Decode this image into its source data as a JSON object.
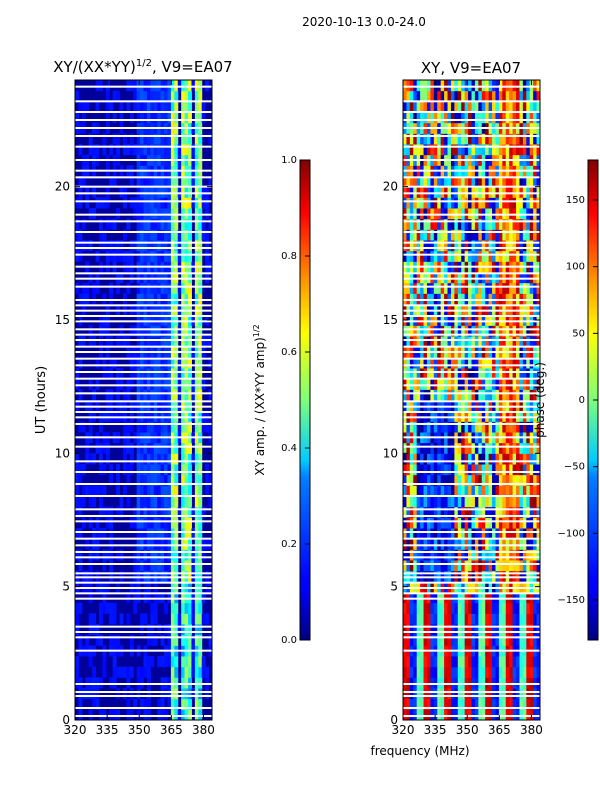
{
  "figure": {
    "suptitle": "2020-10-13 0.0-24.0",
    "xlabel": "frequency (MHz)"
  },
  "chart_data": [
    {
      "type": "heatmap",
      "title": "XY/(XX*YY)",
      "title_superscript": "1/2",
      "title_suffix": ", V9=EA07",
      "xlabel": "",
      "ylabel": "UT (hours)",
      "xlim": [
        320,
        384
      ],
      "ylim": [
        0,
        24
      ],
      "xticks": [
        "320",
        "335",
        "350",
        "365",
        "380"
      ],
      "xtick_values": [
        320,
        335,
        350,
        365,
        380
      ],
      "yticks": [
        "0",
        "5",
        "10",
        "15",
        "20"
      ],
      "ytick_values": [
        0,
        5,
        10,
        15,
        20
      ],
      "colormap": "jet",
      "colorbar": {
        "label": "XY amp. / (XX*YY amp)",
        "label_superscript": "1/2",
        "range": [
          0.0,
          1.0
        ],
        "ticks": [
          "0.0",
          "0.2",
          "0.4",
          "0.6",
          "0.8",
          "1.0"
        ],
        "tick_values": [
          0.0,
          0.2,
          0.4,
          0.6,
          0.8,
          1.0
        ]
      },
      "bright_channels_mhz": [
        [
          364.5,
          367.5
        ],
        [
          369,
          371
        ],
        [
          372,
          374.5
        ],
        [
          376,
          378.5
        ],
        [
          378.5,
          380
        ]
      ]
    },
    {
      "type": "heatmap",
      "title": "XY, V9=EA07",
      "xlabel": "",
      "ylabel": "",
      "xlim": [
        320,
        384
      ],
      "ylim": [
        0,
        24
      ],
      "xticks": [
        "320",
        "335",
        "350",
        "365",
        "380"
      ],
      "xtick_values": [
        320,
        335,
        350,
        365,
        380
      ],
      "yticks": [
        "0",
        "5",
        "10",
        "15",
        "20"
      ],
      "ytick_values": [
        0,
        5,
        10,
        15,
        20
      ],
      "colormap": "jet",
      "colorbar": {
        "label": "phase (deg.)",
        "range": [
          -180,
          180
        ],
        "ticks": [
          "−150",
          "−100",
          "−50",
          "0",
          "50",
          "100",
          "150"
        ],
        "tick_values": [
          -150,
          -100,
          -50,
          0,
          50,
          100,
          150
        ]
      }
    }
  ],
  "flagged_hours": [
    0.15,
    0.45,
    0.9,
    1.05,
    1.35,
    2.6,
    3.1,
    3.3,
    3.5,
    4.55,
    4.75,
    4.95,
    5.15,
    5.35,
    5.5,
    5.85,
    6.1,
    6.3,
    6.55,
    6.8,
    7.05,
    7.45,
    7.65,
    7.9,
    8.4,
    8.85,
    9.3,
    9.7,
    10.25,
    10.6,
    11.1,
    11.35,
    11.55,
    11.75,
    11.95,
    12.25,
    12.55,
    12.8,
    13.05,
    13.3,
    13.55,
    13.8,
    14.0,
    14.25,
    14.45,
    14.65,
    14.95,
    15.15,
    15.35,
    15.55,
    15.75,
    16.25,
    16.55,
    16.75,
    17.0,
    17.45,
    17.7,
    17.9,
    18.3,
    18.7,
    18.95,
    19.45,
    19.75,
    20.0,
    20.35,
    20.6,
    21.0,
    21.5,
    21.9,
    22.2,
    22.5,
    22.8,
    23.2,
    23.75
  ]
}
